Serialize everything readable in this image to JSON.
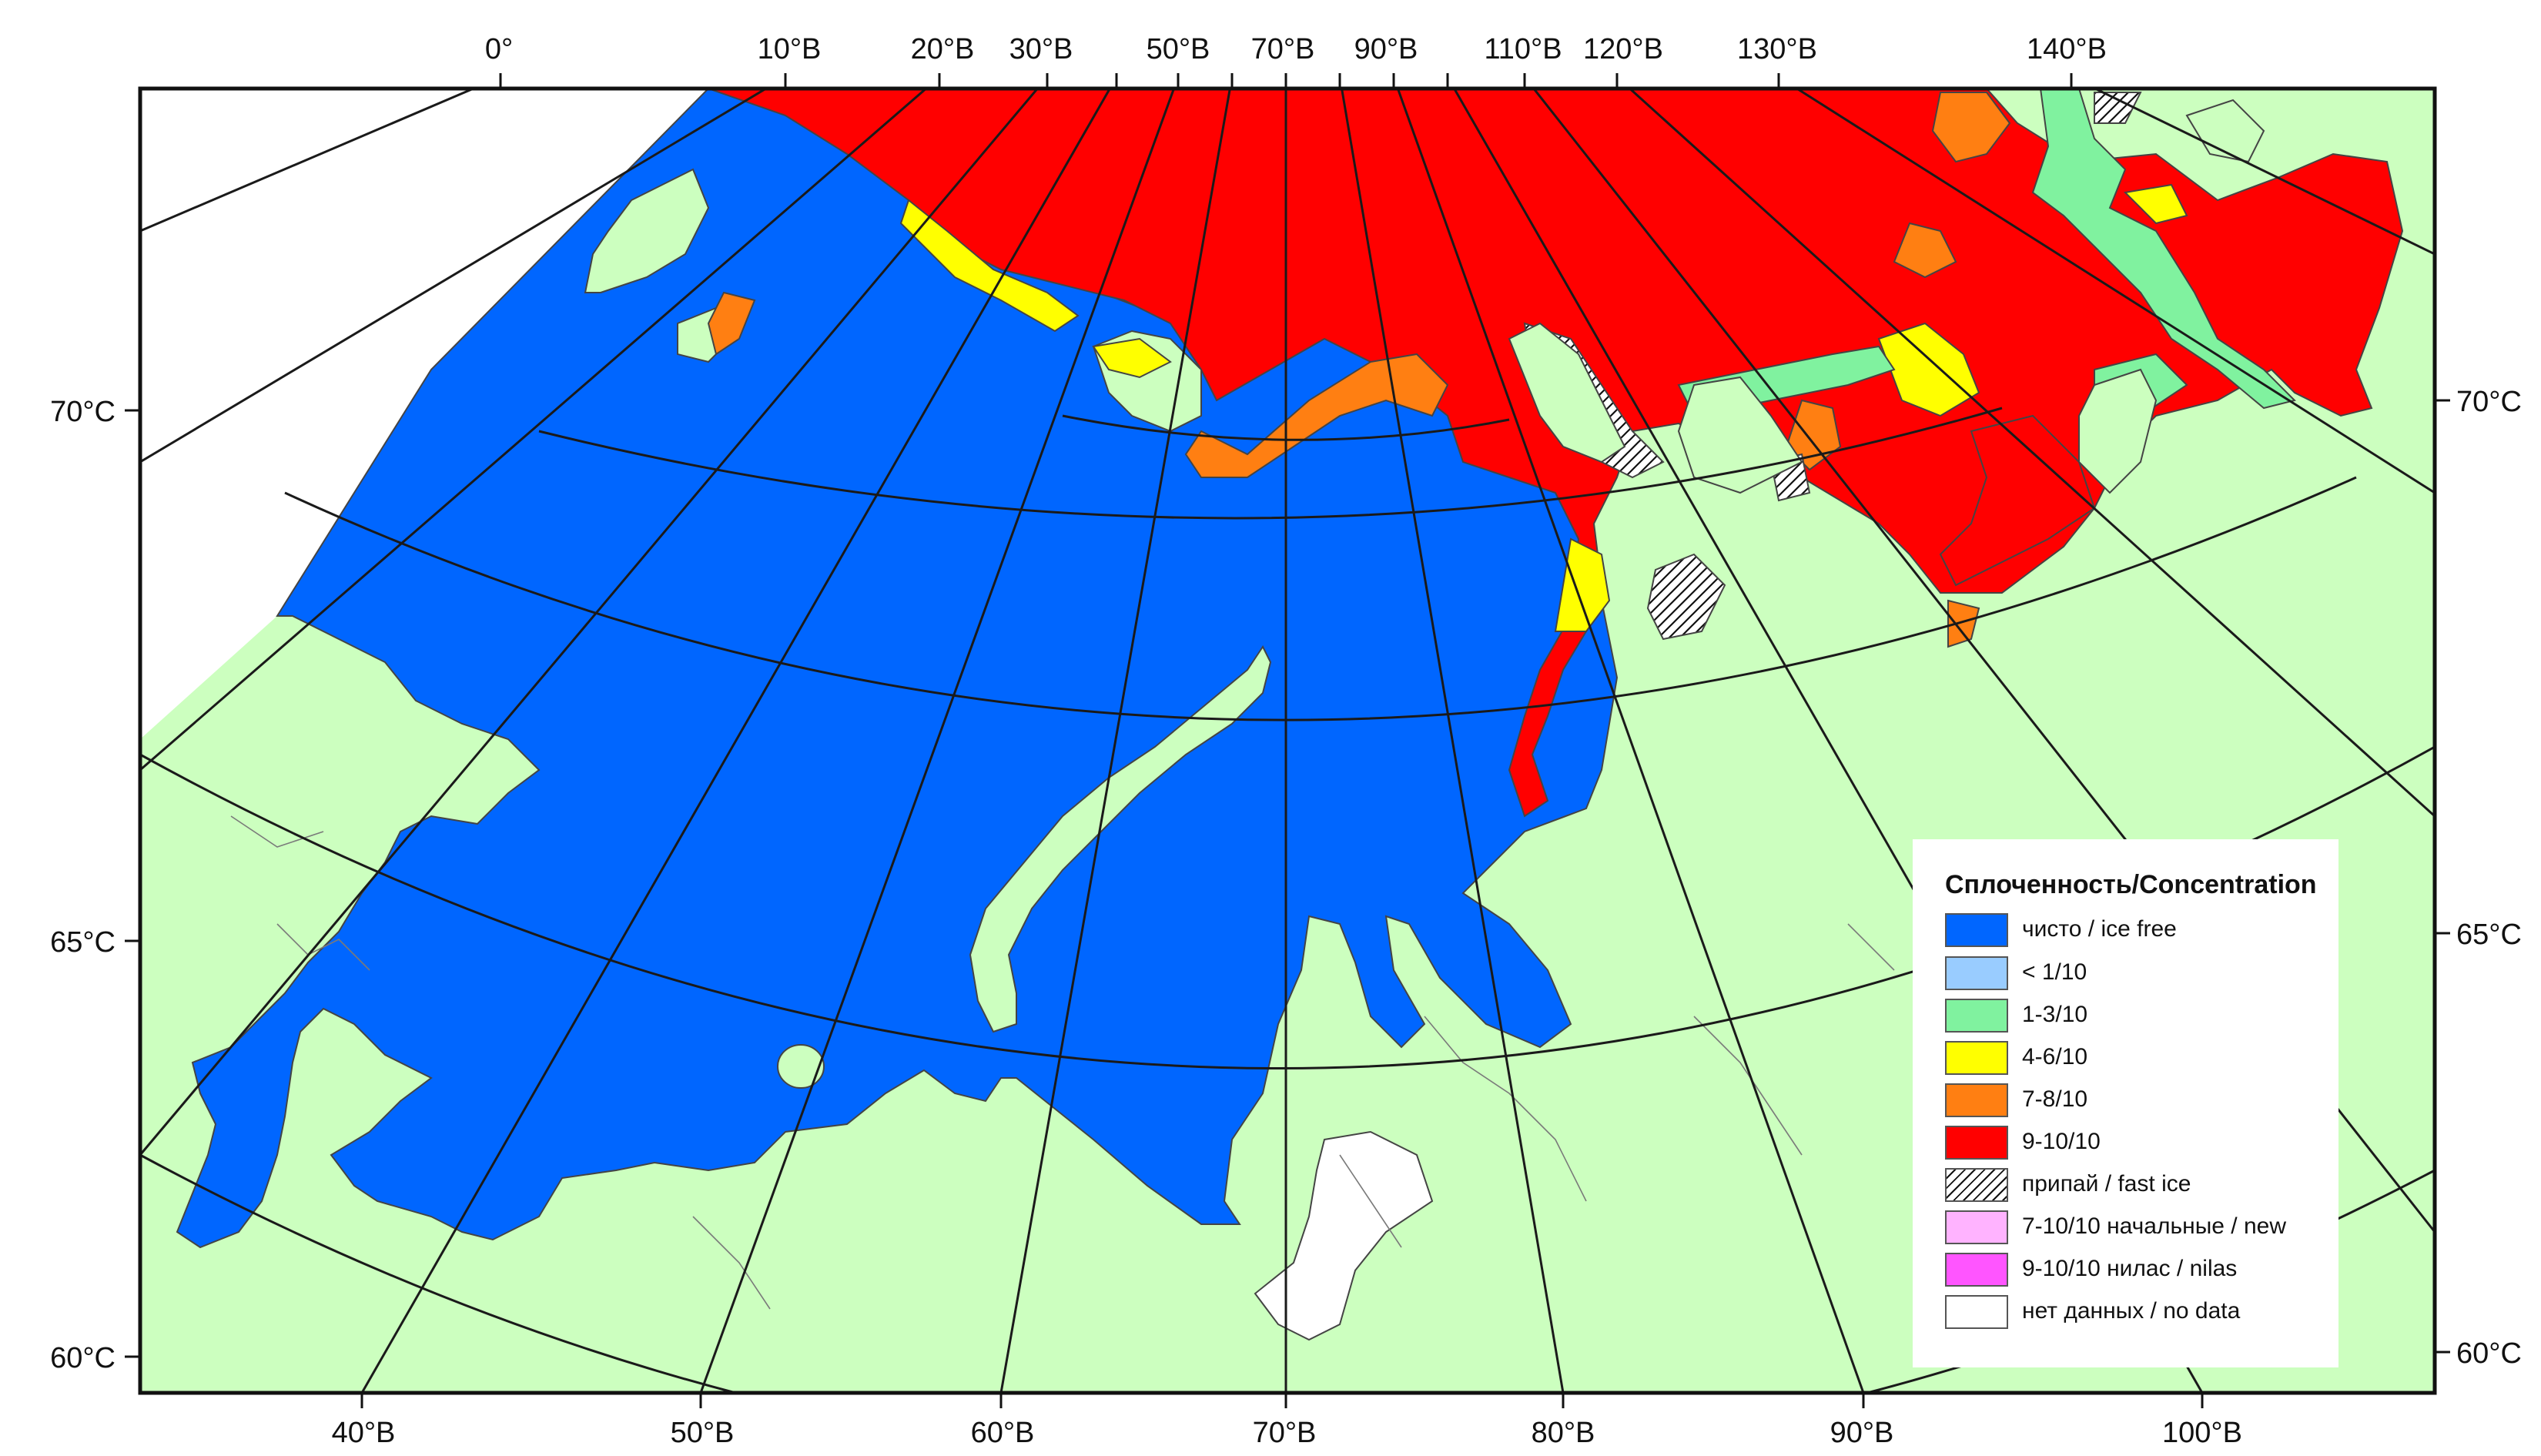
{
  "colors": {
    "land": "#ccffbf",
    "water": "#0066ff",
    "conc_lt1": "#99ccff",
    "conc_1_3": "#80f29f",
    "conc_4_6": "#ffff00",
    "conc_7_8": "#ff7f12",
    "conc_9_10": "#ff0000",
    "fast_ice": "#ffffff",
    "new_ice": "#ffb3ff",
    "nilas": "#ff55ff",
    "no_data": "#ffffff"
  },
  "graticule": {
    "top_labels": [
      "0°",
      "10°В",
      "20°В",
      "30°В",
      "50°В",
      "70°В",
      "90°В",
      "110°В",
      "120°В",
      "130°В",
      "140°В"
    ],
    "bottom_labels": [
      "40°В",
      "50°В",
      "60°В",
      "70°В",
      "80°В",
      "90°В",
      "100°В"
    ],
    "left_labels": [
      "70°С",
      "65°С",
      "60°С"
    ],
    "right_labels": [
      "70°С",
      "65°С",
      "60°С"
    ]
  },
  "legend": {
    "title": "Сплоченность/Concentration",
    "items": [
      {
        "label": "чисто / ice free",
        "color": "#0066ff",
        "pattern": "solid"
      },
      {
        "label": "< 1/10",
        "color": "#99ccff",
        "pattern": "solid"
      },
      {
        "label": "1-3/10",
        "color": "#80f29f",
        "pattern": "solid"
      },
      {
        "label": "4-6/10",
        "color": "#ffff00",
        "pattern": "solid"
      },
      {
        "label": "7-8/10",
        "color": "#ff7f12",
        "pattern": "solid"
      },
      {
        "label": "9-10/10",
        "color": "#ff0000",
        "pattern": "solid"
      },
      {
        "label": "припай / fast ice",
        "color": "#ffffff",
        "pattern": "hatch"
      },
      {
        "label": "7-10/10 начальные / new",
        "color": "#ffb3ff",
        "pattern": "solid"
      },
      {
        "label": "9-10/10 нилас / nilas",
        "color": "#ff55ff",
        "pattern": "solid"
      },
      {
        "label": "нет данных / no data",
        "color": "#ffffff",
        "pattern": "solid"
      }
    ]
  }
}
